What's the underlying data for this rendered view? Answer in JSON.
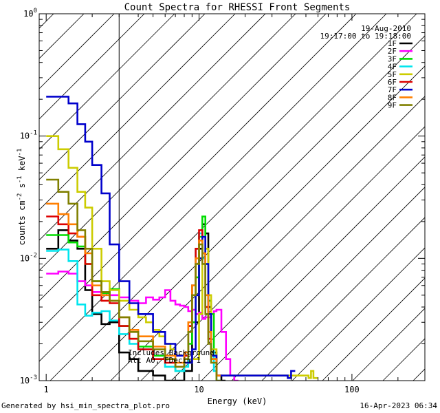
{
  "chart_data": {
    "type": "line",
    "title": "Count Spectra for RHESSI Front Segments",
    "xlabel": "Energy (keV)",
    "ylabel": "counts cm",
    "ylabel_sup1": "-2",
    "ylabel_mid": " s",
    "ylabel_sup2": "-1",
    "ylabel_mid2": " keV",
    "ylabel_sup3": "-1",
    "xscale": "log",
    "yscale": "log",
    "xlim": [
      0.9,
      300
    ],
    "ylim": [
      0.001,
      1.0
    ],
    "x_ticks": [
      {
        "value": 1,
        "label": "1"
      },
      {
        "value": 10,
        "label": "10"
      },
      {
        "value": 100,
        "label": "100"
      }
    ],
    "y_ticks": [
      {
        "value": 0.001,
        "base": "10",
        "exp": "-3"
      },
      {
        "value": 0.01,
        "base": "10",
        "exp": "-2"
      },
      {
        "value": 0.1,
        "base": "10",
        "exp": "-1"
      },
      {
        "value": 1,
        "base": "10",
        "exp": "0"
      }
    ],
    "shaded_region": {
      "x_from": 0.9,
      "x_to": 3.0,
      "style": "diagonal-hatch"
    },
    "date": "19-Aug-2010",
    "time_range": "19:17:00 to 19:18:00",
    "annotation": [
      "Includes Background",
      "Att A0, FDecim 1"
    ],
    "legend_position": "top-right",
    "series": [
      {
        "name": "1F",
        "color": "#000000",
        "x": [
          1.0,
          1.2,
          1.4,
          1.6,
          1.8,
          2.0,
          2.3,
          2.6,
          3.0,
          3.5,
          4.0,
          5.0,
          6.0,
          7.0,
          8.0,
          9.0,
          10.0,
          10.5,
          11.0,
          11.5,
          12.0,
          13.0,
          14.0
        ],
        "y": [
          0.012,
          0.017,
          0.014,
          0.012,
          0.0055,
          0.0035,
          0.0029,
          0.003,
          0.0017,
          0.0015,
          0.0012,
          0.0011,
          0.001,
          0.001,
          0.0012,
          0.003,
          0.012,
          0.019,
          0.016,
          0.004,
          0.0017,
          0.0011,
          0.001
        ]
      },
      {
        "name": "2F",
        "color": "#ff00ff",
        "x": [
          1.0,
          1.2,
          1.4,
          1.6,
          1.8,
          2.0,
          2.3,
          2.6,
          3.0,
          3.5,
          4.0,
          4.5,
          5.0,
          5.5,
          6.0,
          6.5,
          7.0,
          7.5,
          8.0,
          8.5,
          9.0,
          9.5,
          10.0,
          10.5,
          11.0,
          11.5,
          12.0,
          12.5,
          13.0,
          14.0,
          15.0,
          16.0,
          17.0
        ],
        "y": [
          0.0075,
          0.0078,
          0.0075,
          0.0065,
          0.006,
          0.0053,
          0.0052,
          0.005,
          0.0048,
          0.0045,
          0.0043,
          0.0048,
          0.0046,
          0.0048,
          0.0055,
          0.0045,
          0.0042,
          0.0041,
          0.004,
          0.0037,
          0.0038,
          0.0035,
          0.0036,
          0.0032,
          0.0033,
          0.0033,
          0.0035,
          0.0037,
          0.0038,
          0.0025,
          0.0015,
          0.0011,
          0.001
        ]
      },
      {
        "name": "3F",
        "color": "#00dd00",
        "x": [
          1.0,
          1.2,
          1.4,
          1.6,
          1.8,
          2.0,
          2.3,
          2.6,
          3.0,
          3.5,
          4.0,
          5.0,
          6.0,
          7.0,
          8.0,
          8.5,
          9.0,
          9.5,
          10.0,
          10.5,
          11.0,
          11.5,
          12.0,
          12.5,
          13.0
        ],
        "y": [
          0.0155,
          0.0155,
          0.0135,
          0.0125,
          0.009,
          0.0065,
          0.0052,
          0.0056,
          0.0028,
          0.0022,
          0.0019,
          0.0016,
          0.0013,
          0.0012,
          0.0015,
          0.002,
          0.003,
          0.007,
          0.015,
          0.022,
          0.009,
          0.0045,
          0.0035,
          0.0015,
          0.0011
        ]
      },
      {
        "name": "4F",
        "color": "#00e5ee",
        "x": [
          1.0,
          1.2,
          1.4,
          1.6,
          1.8,
          2.0,
          2.3,
          2.6,
          3.0,
          3.5,
          4.0,
          5.0,
          6.0,
          7.0,
          8.0,
          8.5,
          9.0,
          9.5,
          10.0,
          10.5,
          11.0,
          11.5,
          12.0,
          12.5,
          13.0
        ],
        "y": [
          0.0115,
          0.0118,
          0.0095,
          0.0042,
          0.0034,
          0.0036,
          0.0037,
          0.0031,
          0.0024,
          0.002,
          0.0018,
          0.0015,
          0.0013,
          0.0012,
          0.0013,
          0.0025,
          0.006,
          0.012,
          0.016,
          0.01,
          0.004,
          0.0025,
          0.0018,
          0.0012,
          0.001
        ]
      },
      {
        "name": "5F",
        "color": "#cccc00",
        "x": [
          1.0,
          1.2,
          1.4,
          1.6,
          1.8,
          2.0,
          2.3,
          2.6,
          3.0,
          3.5,
          4.0,
          4.5,
          5.0,
          5.5,
          6.0,
          6.5,
          7.0,
          8.0,
          9.0,
          10.0,
          10.5,
          11.0,
          11.5,
          12.0,
          13.0,
          52.0,
          54.0,
          56.0
        ],
        "y": [
          0.1,
          0.078,
          0.055,
          0.035,
          0.026,
          0.012,
          0.0065,
          0.0055,
          0.0045,
          0.0038,
          0.0033,
          0.003,
          0.0026,
          0.0023,
          0.002,
          0.0018,
          0.0016,
          0.0014,
          0.0015,
          0.0035,
          0.009,
          0.012,
          0.005,
          0.0018,
          0.0011,
          0.00105,
          0.0012,
          0.00105
        ]
      },
      {
        "name": "6F",
        "color": "#dd0000",
        "x": [
          1.0,
          1.2,
          1.4,
          1.6,
          1.8,
          2.0,
          2.3,
          2.6,
          3.0,
          3.5,
          4.0,
          5.0,
          6.0,
          7.0,
          8.0,
          8.5,
          9.0,
          9.5,
          10.0,
          10.5,
          11.0,
          11.5,
          12.0,
          13.0
        ],
        "y": [
          0.022,
          0.019,
          0.016,
          0.015,
          0.009,
          0.005,
          0.0045,
          0.0043,
          0.0028,
          0.0022,
          0.0018,
          0.0015,
          0.0014,
          0.0013,
          0.0016,
          0.0028,
          0.006,
          0.012,
          0.017,
          0.011,
          0.004,
          0.0022,
          0.0015,
          0.0011
        ]
      },
      {
        "name": "7F",
        "color": "#0000cc",
        "x": [
          1.0,
          1.2,
          1.4,
          1.6,
          1.8,
          2.0,
          2.3,
          2.6,
          3.0,
          3.5,
          4.0,
          5.0,
          6.0,
          7.0,
          8.0,
          9.0,
          9.5,
          10.0,
          10.5,
          11.0,
          11.5,
          12.0,
          13.0,
          38.0,
          40.0
        ],
        "y": [
          0.21,
          0.21,
          0.185,
          0.125,
          0.09,
          0.058,
          0.034,
          0.013,
          0.0065,
          0.0043,
          0.0035,
          0.0025,
          0.002,
          0.0016,
          0.0014,
          0.0018,
          0.005,
          0.01,
          0.015,
          0.009,
          0.0035,
          0.0016,
          0.0011,
          0.00105,
          0.0012
        ]
      },
      {
        "name": "8F",
        "color": "#ff7f00",
        "x": [
          1.0,
          1.2,
          1.4,
          1.6,
          1.8,
          2.0,
          2.3,
          2.6,
          3.0,
          3.5,
          4.0,
          5.0,
          6.0,
          7.0,
          8.0,
          8.5,
          9.0,
          9.5,
          10.0,
          10.5,
          11.0,
          11.5,
          12.0,
          13.0
        ],
        "y": [
          0.028,
          0.023,
          0.019,
          0.015,
          0.011,
          0.006,
          0.005,
          0.0045,
          0.0033,
          0.0026,
          0.0023,
          0.0019,
          0.0016,
          0.0014,
          0.0017,
          0.003,
          0.006,
          0.01,
          0.014,
          0.011,
          0.005,
          0.0025,
          0.0015,
          0.0011
        ]
      },
      {
        "name": "9F",
        "color": "#808000",
        "x": [
          1.0,
          1.2,
          1.4,
          1.6,
          1.8,
          2.0,
          2.3,
          2.6,
          3.0,
          3.5,
          4.0,
          5.0,
          6.0,
          7.0,
          8.0,
          8.5,
          9.0,
          9.5,
          10.0,
          10.5,
          11.0,
          11.5,
          12.0,
          13.0
        ],
        "y": [
          0.044,
          0.035,
          0.028,
          0.017,
          0.012,
          0.0065,
          0.0053,
          0.0045,
          0.0033,
          0.0025,
          0.0021,
          0.0018,
          0.0015,
          0.0013,
          0.0015,
          0.0025,
          0.005,
          0.009,
          0.013,
          0.009,
          0.0035,
          0.002,
          0.0014,
          0.001
        ]
      }
    ]
  },
  "footer": {
    "generated_by": "Generated by hsi_min_spectra_plot.pro",
    "timestamp": "16-Apr-2023 06:34"
  }
}
